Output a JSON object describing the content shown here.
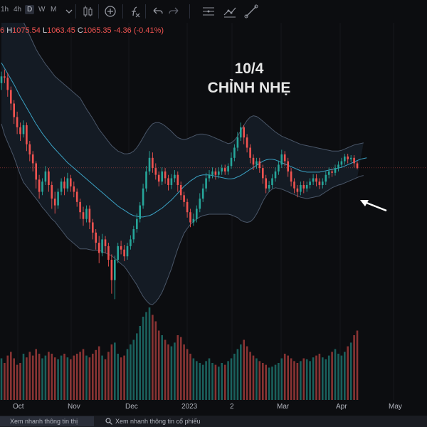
{
  "toolbar": {
    "timeframes": [
      "1h",
      "4h",
      "D",
      "W",
      "M"
    ],
    "active_timeframe": "D"
  },
  "ohlc": {
    "o_tail": "6",
    "h_key": "H",
    "h_val": "1075.54",
    "l_key": "L",
    "l_val": "1063.45",
    "c_key": "C",
    "c_val": "1065.35",
    "change": "-4.36 (-0.41%)"
  },
  "annotation": {
    "line1": "10/4",
    "line2": "CHỈNH NHẸ"
  },
  "bottom_bar": {
    "market_button": "Xem nhanh thông tin thị trường",
    "stock_button": "Xem nhanh thông tin cổ phiếu"
  },
  "colors": {
    "up": "#26a69a",
    "down": "#ef5350",
    "ma": "#3ba2c4",
    "band": "#4a5668",
    "band_fill": "#141b24",
    "price_line": "#ef5350",
    "background": "#0c0d10"
  },
  "chart_data": {
    "type": "candlestick",
    "indicators": [
      "Bollinger Bands",
      "Volume"
    ],
    "last_close": 1065.35,
    "x_tick_labels": [
      "Oct",
      "Nov",
      "Dec",
      "2023",
      "2",
      "Mar",
      "Apr",
      "May"
    ],
    "price_range": [
      820,
      1260
    ],
    "volume_range": [
      0,
      100
    ],
    "ma": [
      1220,
      1212,
      1204,
      1196,
      1188,
      1179,
      1170,
      1162,
      1154,
      1146,
      1138,
      1130,
      1123,
      1116,
      1110,
      1104,
      1098,
      1093,
      1088,
      1083,
      1078,
      1073,
      1069,
      1065,
      1061,
      1057,
      1053,
      1049,
      1045,
      1041,
      1037,
      1033,
      1029,
      1025,
      1021,
      1017,
      1013,
      1009,
      1006,
      1003,
      1000,
      997,
      995,
      994,
      993,
      993,
      994,
      995,
      997,
      1000,
      1003,
      1006,
      1010,
      1014,
      1018,
      1023,
      1028,
      1033,
      1038,
      1042,
      1046,
      1049,
      1052,
      1054,
      1055,
      1055,
      1055,
      1054,
      1053,
      1052,
      1051,
      1050,
      1049,
      1049,
      1050,
      1052,
      1054,
      1057,
      1060,
      1063,
      1066,
      1069,
      1072,
      1075,
      1077,
      1078,
      1078,
      1077,
      1075,
      1073,
      1071,
      1069,
      1067,
      1065,
      1063,
      1061,
      1060,
      1059,
      1059,
      1059,
      1059,
      1059,
      1060,
      1061,
      1062,
      1063,
      1064,
      1065,
      1066,
      1068,
      1070,
      1072,
      1074,
      1076,
      1078,
      1079,
      1080
    ],
    "upper": [
      1310,
      1310,
      1305,
      1300,
      1295,
      1290,
      1285,
      1280,
      1270,
      1260,
      1250,
      1240,
      1232,
      1225,
      1218,
      1212,
      1206,
      1200,
      1196,
      1192,
      1188,
      1184,
      1180,
      1176,
      1172,
      1168,
      1160,
      1152,
      1145,
      1138,
      1130,
      1122,
      1116,
      1110,
      1104,
      1098,
      1094,
      1090,
      1088,
      1086,
      1086,
      1087,
      1090,
      1095,
      1102,
      1110,
      1118,
      1125,
      1130,
      1132,
      1132,
      1130,
      1127,
      1123,
      1119,
      1114,
      1110,
      1108,
      1107,
      1108,
      1110,
      1112,
      1114,
      1115,
      1115,
      1114,
      1113,
      1111,
      1109,
      1107,
      1105,
      1103,
      1101,
      1102,
      1106,
      1112,
      1120,
      1128,
      1135,
      1140,
      1142,
      1141,
      1138,
      1134,
      1130,
      1126,
      1122,
      1118,
      1115,
      1112,
      1110,
      1108,
      1106,
      1104,
      1102,
      1100,
      1099,
      1098,
      1097,
      1096,
      1095,
      1094,
      1093,
      1092,
      1091,
      1090,
      1090,
      1090,
      1091,
      1093,
      1095,
      1097,
      1099,
      1100,
      1101,
      1102
    ],
    "lower": [
      1130,
      1114,
      1103,
      1092,
      1081,
      1068,
      1055,
      1044,
      1038,
      1032,
      1026,
      1020,
      1014,
      1007,
      1002,
      996,
      990,
      986,
      980,
      974,
      968,
      962,
      958,
      954,
      950,
      946,
      946,
      946,
      945,
      944,
      944,
      944,
      942,
      940,
      938,
      936,
      932,
      928,
      924,
      920,
      914,
      907,
      900,
      893,
      884,
      876,
      870,
      865,
      864,
      868,
      874,
      882,
      893,
      905,
      917,
      932,
      946,
      958,
      969,
      976,
      982,
      986,
      990,
      993,
      995,
      996,
      997,
      997,
      997,
      997,
      997,
      997,
      997,
      996,
      994,
      992,
      988,
      986,
      985,
      986,
      990,
      997,
      1006,
      1016,
      1024,
      1030,
      1034,
      1036,
      1035,
      1034,
      1032,
      1030,
      1028,
      1026,
      1024,
      1022,
      1021,
      1020,
      1021,
      1022,
      1023,
      1024,
      1027,
      1030,
      1033,
      1036,
      1038,
      1040,
      1041,
      1043,
      1045,
      1047,
      1049,
      1051,
      1053,
      1054
    ],
    "candles": [
      [
        1190,
        1200,
        1207,
        1180
      ],
      [
        1200,
        1198,
        1210,
        1190
      ],
      [
        1198,
        1180,
        1205,
        1170
      ],
      [
        1180,
        1160,
        1185,
        1150
      ],
      [
        1160,
        1140,
        1165,
        1130
      ],
      [
        1140,
        1125,
        1148,
        1115
      ],
      [
        1125,
        1115,
        1132,
        1105
      ],
      [
        1115,
        1128,
        1135,
        1110
      ],
      [
        1128,
        1100,
        1132,
        1090
      ],
      [
        1100,
        1085,
        1105,
        1075
      ],
      [
        1085,
        1072,
        1090,
        1060
      ],
      [
        1072,
        1048,
        1075,
        1035
      ],
      [
        1048,
        1030,
        1055,
        1020
      ],
      [
        1030,
        1045,
        1050,
        1025
      ],
      [
        1045,
        1060,
        1068,
        1040
      ],
      [
        1060,
        1040,
        1065,
        1030
      ],
      [
        1040,
        1020,
        1045,
        1005
      ],
      [
        1020,
        1010,
        1030,
        998
      ],
      [
        1010,
        1030,
        1035,
        1005
      ],
      [
        1030,
        1045,
        1050,
        1025
      ],
      [
        1045,
        1035,
        1052,
        1025
      ],
      [
        1035,
        1050,
        1058,
        1030
      ],
      [
        1050,
        1038,
        1055,
        1030
      ],
      [
        1038,
        1030,
        1045,
        1022
      ],
      [
        1030,
        1015,
        1035,
        1008
      ],
      [
        1015,
        1000,
        1020,
        990
      ],
      [
        1000,
        990,
        1008,
        980
      ],
      [
        990,
        1005,
        1010,
        985
      ],
      [
        1005,
        985,
        1010,
        975
      ],
      [
        985,
        970,
        990,
        960
      ],
      [
        970,
        955,
        975,
        945
      ],
      [
        955,
        940,
        965,
        925
      ],
      [
        940,
        960,
        968,
        935
      ],
      [
        960,
        950,
        965,
        940
      ],
      [
        950,
        930,
        955,
        920
      ],
      [
        930,
        900,
        938,
        880
      ],
      [
        900,
        930,
        936,
        872
      ],
      [
        930,
        950,
        955,
        925
      ],
      [
        950,
        945,
        958,
        938
      ],
      [
        945,
        935,
        952,
        928
      ],
      [
        935,
        950,
        955,
        930
      ],
      [
        950,
        960,
        966,
        945
      ],
      [
        960,
        975,
        980,
        955
      ],
      [
        975,
        990,
        998,
        970
      ],
      [
        990,
        1010,
        1015,
        985
      ],
      [
        1010,
        1035,
        1042,
        1005
      ],
      [
        1035,
        1060,
        1068,
        1030
      ],
      [
        1060,
        1080,
        1090,
        1055
      ],
      [
        1080,
        1065,
        1088,
        1058
      ],
      [
        1065,
        1055,
        1072,
        1048
      ],
      [
        1055,
        1045,
        1060,
        1038
      ],
      [
        1045,
        1060,
        1066,
        1040
      ],
      [
        1060,
        1050,
        1065,
        1042
      ],
      [
        1050,
        1040,
        1055,
        1032
      ],
      [
        1040,
        1050,
        1056,
        1034
      ],
      [
        1050,
        1055,
        1062,
        1044
      ],
      [
        1055,
        1040,
        1060,
        1030
      ],
      [
        1040,
        1025,
        1045,
        1018
      ],
      [
        1025,
        1015,
        1030,
        1008
      ],
      [
        1015,
        1000,
        1020,
        992
      ],
      [
        1000,
        985,
        1005,
        978
      ],
      [
        985,
        990,
        998,
        980
      ],
      [
        990,
        1005,
        1010,
        985
      ],
      [
        1005,
        1020,
        1028,
        1000
      ],
      [
        1020,
        1035,
        1042,
        1015
      ],
      [
        1035,
        1050,
        1058,
        1030
      ],
      [
        1050,
        1055,
        1062,
        1045
      ],
      [
        1055,
        1060,
        1066,
        1050
      ],
      [
        1060,
        1055,
        1065,
        1048
      ],
      [
        1055,
        1060,
        1066,
        1050
      ],
      [
        1060,
        1065,
        1070,
        1055
      ],
      [
        1065,
        1060,
        1070,
        1055
      ],
      [
        1060,
        1068,
        1072,
        1055
      ],
      [
        1068,
        1080,
        1088,
        1064
      ],
      [
        1080,
        1095,
        1100,
        1075
      ],
      [
        1095,
        1110,
        1118,
        1090
      ],
      [
        1110,
        1125,
        1132,
        1105
      ],
      [
        1125,
        1110,
        1128,
        1100
      ],
      [
        1110,
        1095,
        1115,
        1088
      ],
      [
        1095,
        1080,
        1100,
        1072
      ],
      [
        1080,
        1070,
        1085,
        1062
      ],
      [
        1070,
        1075,
        1080,
        1064
      ],
      [
        1075,
        1065,
        1080,
        1058
      ],
      [
        1065,
        1050,
        1070,
        1042
      ],
      [
        1050,
        1035,
        1055,
        1028
      ],
      [
        1035,
        1040,
        1046,
        1030
      ],
      [
        1040,
        1050,
        1056,
        1035
      ],
      [
        1050,
        1060,
        1066,
        1045
      ],
      [
        1060,
        1070,
        1076,
        1055
      ],
      [
        1070,
        1085,
        1092,
        1065
      ],
      [
        1085,
        1075,
        1090,
        1068
      ],
      [
        1075,
        1060,
        1080,
        1052
      ],
      [
        1060,
        1045,
        1065,
        1038
      ],
      [
        1045,
        1035,
        1050,
        1028
      ],
      [
        1035,
        1030,
        1040,
        1022
      ],
      [
        1030,
        1040,
        1045,
        1025
      ],
      [
        1040,
        1035,
        1046,
        1028
      ],
      [
        1035,
        1040,
        1045,
        1030
      ],
      [
        1040,
        1045,
        1050,
        1035
      ],
      [
        1045,
        1050,
        1056,
        1040
      ],
      [
        1050,
        1045,
        1056,
        1038
      ],
      [
        1045,
        1040,
        1050,
        1034
      ],
      [
        1040,
        1045,
        1050,
        1035
      ],
      [
        1045,
        1055,
        1060,
        1040
      ],
      [
        1055,
        1060,
        1066,
        1050
      ],
      [
        1060,
        1058,
        1064,
        1052
      ],
      [
        1058,
        1065,
        1070,
        1054
      ],
      [
        1065,
        1070,
        1075,
        1060
      ],
      [
        1070,
        1075,
        1080,
        1066
      ],
      [
        1075,
        1082,
        1086,
        1070
      ],
      [
        1082,
        1078,
        1086,
        1072
      ],
      [
        1078,
        1080,
        1084,
        1074
      ],
      [
        1080,
        1072,
        1084,
        1066
      ],
      [
        1072,
        1065,
        1075,
        1063
      ]
    ],
    "volumes": [
      45,
      40,
      48,
      52,
      45,
      38,
      40,
      50,
      46,
      52,
      48,
      55,
      50,
      45,
      48,
      52,
      50,
      46,
      44,
      48,
      50,
      46,
      44,
      48,
      50,
      52,
      55,
      48,
      46,
      50,
      54,
      58,
      48,
      44,
      52,
      60,
      62,
      50,
      46,
      48,
      55,
      60,
      65,
      72,
      80,
      90,
      95,
      100,
      92,
      85,
      75,
      70,
      65,
      60,
      58,
      62,
      70,
      68,
      60,
      55,
      50,
      45,
      42,
      40,
      38,
      42,
      45,
      40,
      38,
      36,
      40,
      38,
      42,
      45,
      50,
      55,
      60,
      65,
      58,
      52,
      48,
      45,
      42,
      40,
      38,
      35,
      36,
      38,
      40,
      45,
      50,
      48,
      45,
      42,
      40,
      42,
      45,
      44,
      42,
      46,
      48,
      50,
      46,
      44,
      48,
      52,
      55,
      50,
      48,
      52,
      58,
      62,
      70,
      75,
      68,
      64
    ]
  }
}
